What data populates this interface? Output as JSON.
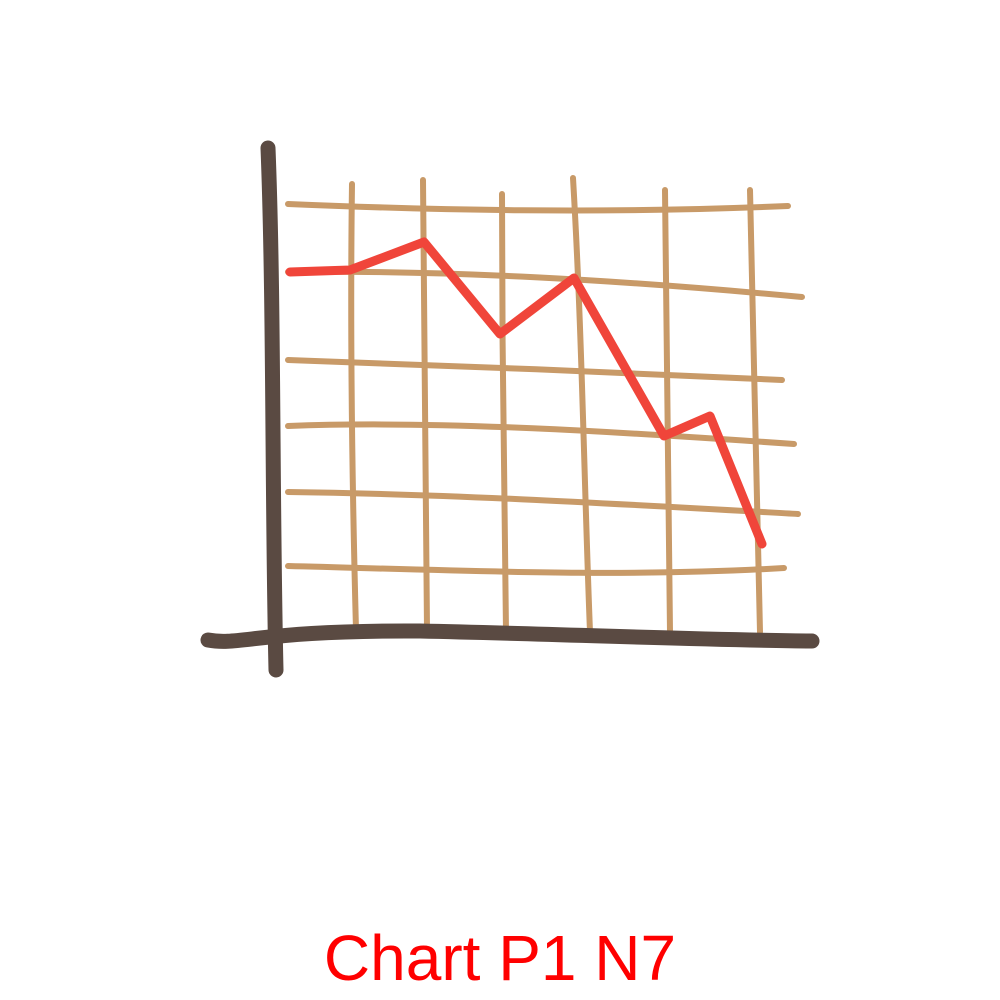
{
  "caption": {
    "text": "Chart P1 N7",
    "color": "#ff0000"
  },
  "illustration": {
    "icon": "declining-line-chart-icon",
    "colors": {
      "axis": "#5a4a42",
      "grid": "#c89a68",
      "line": "#f0453a"
    }
  }
}
